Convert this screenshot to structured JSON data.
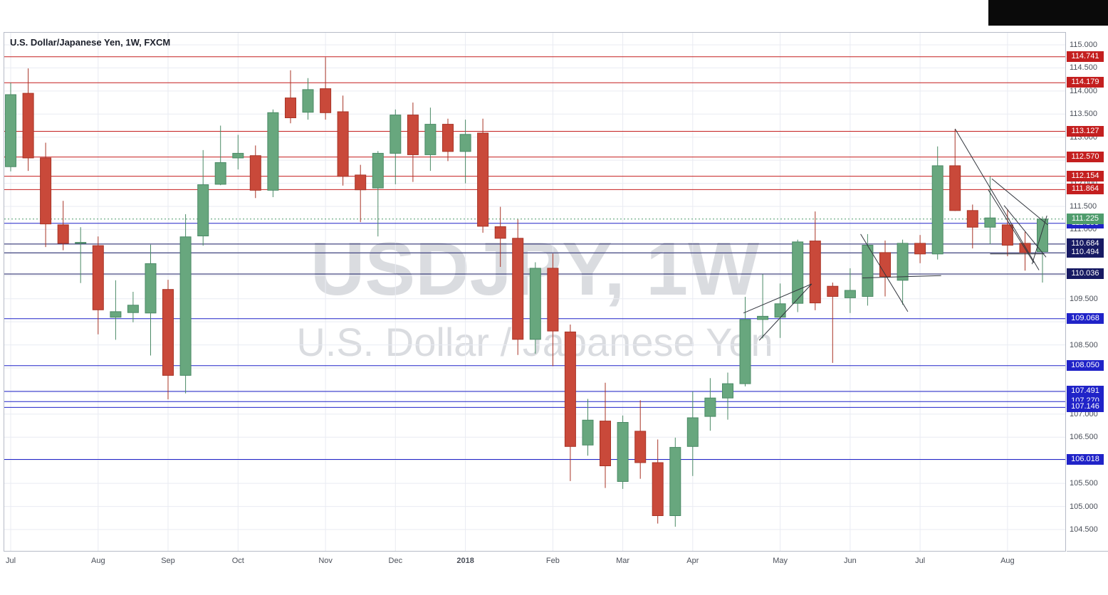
{
  "header": {
    "title": "U.S. Dollar/Japanese Yen, 1W, FXCM"
  },
  "watermark": {
    "line1": "USDJPY, 1W",
    "line2": "U.S. Dollar / Japanese Yen"
  },
  "colors": {
    "grid": "#e9ebf2",
    "frame": "#b6bbc7",
    "axis_text": "#4a4f59",
    "resistance_red": "#c41f1f",
    "support_blue": "#2023c8",
    "pivot_navy": "#171a63",
    "candle_up": "#68a77e",
    "candle_up_border": "#4b8a66",
    "candle_down": "#c9493a",
    "candle_down_border": "#a83426",
    "last_price_green": "#4f9c6d",
    "drawing": "#32363e",
    "chrome_black": "#0a0a0a"
  },
  "chart_data": {
    "type": "candlestick",
    "symbol": "USDJPY",
    "interval": "1W",
    "exchange": "FXCM",
    "title": "U.S. Dollar/Japanese Yen, 1W, FXCM",
    "grid": true,
    "ylim": [
      104.02,
      115.28
    ],
    "price_axis_ticks": [
      "115.000",
      "114.500",
      "114.000",
      "113.500",
      "113.000",
      "112.500",
      "112.000",
      "111.500",
      "111.000",
      "110.500",
      "110.000",
      "109.500",
      "109.000",
      "108.500",
      "108.000",
      "107.500",
      "107.000",
      "106.500",
      "106.000",
      "105.500",
      "105.000",
      "104.500"
    ],
    "time_axis": {
      "months": [
        {
          "label": "Jul",
          "week": 0
        },
        {
          "label": "Aug",
          "week": 5
        },
        {
          "label": "Sep",
          "week": 9
        },
        {
          "label": "Oct",
          "week": 13
        },
        {
          "label": "Nov",
          "week": 18
        },
        {
          "label": "Dec",
          "week": 22
        },
        {
          "label": "2018",
          "week": 26,
          "bold": true
        },
        {
          "label": "Feb",
          "week": 31
        },
        {
          "label": "Mar",
          "week": 35
        },
        {
          "label": "Apr",
          "week": 39
        },
        {
          "label": "May",
          "week": 44
        },
        {
          "label": "Jun",
          "week": 48
        },
        {
          "label": "Jul",
          "week": 52
        },
        {
          "label": "Aug",
          "week": 57
        }
      ]
    },
    "levels": {
      "resistance_red": [
        114.741,
        114.179,
        113.127,
        112.57,
        112.154,
        111.864
      ],
      "support_blue": [
        111.133,
        109.068,
        108.05,
        107.491,
        107.27,
        107.146,
        106.018
      ],
      "pivot_navy": [
        110.684,
        110.494,
        110.036
      ]
    },
    "last_price": 111.225,
    "columns": [
      "week_start",
      "open",
      "high",
      "low",
      "close"
    ],
    "candles": [
      [
        "2017-07-03",
        112.36,
        114.18,
        112.26,
        113.92
      ],
      [
        "2017-07-10",
        113.95,
        114.49,
        112.27,
        112.55
      ],
      [
        "2017-07-17",
        112.55,
        112.88,
        110.62,
        111.12
      ],
      [
        "2017-07-24",
        111.1,
        111.62,
        110.55,
        110.7
      ],
      [
        "2017-07-31",
        110.7,
        111.05,
        109.84,
        110.72
      ],
      [
        "2017-08-07",
        110.65,
        110.85,
        108.73,
        109.26
      ],
      [
        "2017-08-14",
        109.1,
        109.9,
        108.61,
        109.22
      ],
      [
        "2017-08-21",
        109.2,
        109.65,
        108.99,
        109.36
      ],
      [
        "2017-08-28",
        109.19,
        110.67,
        108.27,
        110.26
      ],
      [
        "2017-09-04",
        109.7,
        109.91,
        107.32,
        107.84
      ],
      [
        "2017-09-11",
        107.84,
        111.33,
        107.45,
        110.84
      ],
      [
        "2017-09-18",
        110.86,
        112.72,
        110.65,
        111.97
      ],
      [
        "2017-09-25",
        111.98,
        113.25,
        111.96,
        112.45
      ],
      [
        "2017-10-02",
        112.55,
        113.05,
        112.3,
        112.65
      ],
      [
        "2017-10-09",
        112.6,
        112.82,
        111.68,
        111.85
      ],
      [
        "2017-10-16",
        111.85,
        113.6,
        111.7,
        113.53
      ],
      [
        "2017-10-23",
        113.85,
        114.45,
        113.3,
        113.42
      ],
      [
        "2017-10-30",
        113.54,
        114.28,
        113.38,
        114.03
      ],
      [
        "2017-11-06",
        114.05,
        114.73,
        113.38,
        113.53
      ],
      [
        "2017-11-13",
        113.55,
        113.9,
        111.95,
        112.15
      ],
      [
        "2017-11-20",
        112.18,
        112.4,
        111.16,
        111.86
      ],
      [
        "2017-11-27",
        111.9,
        112.7,
        110.85,
        112.65
      ],
      [
        "2017-12-04",
        112.65,
        113.6,
        111.98,
        113.48
      ],
      [
        "2017-12-11",
        113.48,
        113.75,
        112.03,
        112.62
      ],
      [
        "2017-12-18",
        112.62,
        113.64,
        112.27,
        113.28
      ],
      [
        "2017-12-25",
        113.28,
        113.4,
        112.48,
        112.69
      ],
      [
        "2018-01-01",
        112.69,
        113.38,
        112.0,
        113.06
      ],
      [
        "2018-01-08",
        113.09,
        113.4,
        110.93,
        111.07
      ],
      [
        "2018-01-15",
        111.06,
        111.49,
        110.19,
        110.81
      ],
      [
        "2018-01-22",
        110.81,
        111.22,
        108.28,
        108.62
      ],
      [
        "2018-01-29",
        108.62,
        110.29,
        108.31,
        110.16
      ],
      [
        "2018-02-05",
        110.16,
        110.48,
        108.04,
        108.8
      ],
      [
        "2018-02-12",
        108.78,
        108.94,
        105.55,
        106.3
      ],
      [
        "2018-02-19",
        106.33,
        107.33,
        106.1,
        106.87
      ],
      [
        "2018-02-26",
        106.85,
        107.68,
        105.4,
        105.88
      ],
      [
        "2018-03-05",
        105.54,
        106.97,
        105.38,
        106.82
      ],
      [
        "2018-03-12",
        106.63,
        107.3,
        105.6,
        105.95
      ],
      [
        "2018-03-19",
        105.95,
        106.45,
        104.63,
        104.8
      ],
      [
        "2018-03-26",
        104.8,
        106.49,
        104.56,
        106.28
      ],
      [
        "2018-04-02",
        106.3,
        107.49,
        105.66,
        106.92
      ],
      [
        "2018-04-09",
        106.95,
        107.78,
        106.64,
        107.35
      ],
      [
        "2018-04-16",
        107.35,
        107.9,
        106.88,
        107.66
      ],
      [
        "2018-04-23",
        107.66,
        109.54,
        107.6,
        109.05
      ],
      [
        "2018-04-30",
        109.05,
        110.03,
        108.64,
        109.12
      ],
      [
        "2018-05-07",
        109.1,
        109.83,
        108.65,
        109.39
      ],
      [
        "2018-05-14",
        109.4,
        110.78,
        109.21,
        110.73
      ],
      [
        "2018-05-21",
        110.75,
        111.39,
        109.25,
        109.41
      ],
      [
        "2018-05-28",
        109.77,
        109.85,
        108.11,
        109.55
      ],
      [
        "2018-06-04",
        109.52,
        110.16,
        109.19,
        109.68
      ],
      [
        "2018-06-11",
        109.55,
        110.9,
        109.35,
        110.66
      ],
      [
        "2018-06-18",
        110.5,
        110.76,
        109.55,
        109.98
      ],
      [
        "2018-06-25",
        109.9,
        110.78,
        109.37,
        110.7
      ],
      [
        "2018-07-02",
        110.7,
        110.88,
        110.27,
        110.47
      ],
      [
        "2018-07-09",
        110.47,
        112.8,
        110.35,
        112.38
      ],
      [
        "2018-07-16",
        112.38,
        113.17,
        111.4,
        111.41
      ],
      [
        "2018-07-23",
        111.41,
        111.54,
        110.59,
        111.05
      ],
      [
        "2018-07-30",
        111.05,
        112.15,
        110.68,
        111.25
      ],
      [
        "2018-08-06",
        111.1,
        111.44,
        110.42,
        110.66
      ],
      [
        "2018-08-13",
        110.7,
        110.95,
        110.11,
        110.5
      ],
      [
        "2018-08-20",
        110.52,
        111.28,
        109.85,
        111.225
      ]
    ],
    "trendlines_format": [
      "week_x1",
      "price1",
      "week_x2",
      "price2"
    ],
    "trendlines": [
      [
        41.9,
        109.19,
        45.8,
        109.82
      ],
      [
        42.8,
        108.6,
        45.8,
        109.82
      ],
      [
        48.6,
        110.9,
        51.3,
        109.22
      ],
      [
        48.7,
        109.95,
        53.2,
        110.0
      ],
      [
        54.0,
        113.18,
        58.8,
        110.12
      ],
      [
        55.9,
        111.86,
        58.5,
        110.28
      ],
      [
        56.1,
        112.1,
        59.3,
        111.1
      ],
      [
        56.0,
        110.47,
        59.1,
        110.47
      ],
      [
        56.8,
        111.52,
        59.2,
        110.4
      ],
      [
        58.4,
        110.25,
        59.25,
        111.3
      ]
    ]
  }
}
